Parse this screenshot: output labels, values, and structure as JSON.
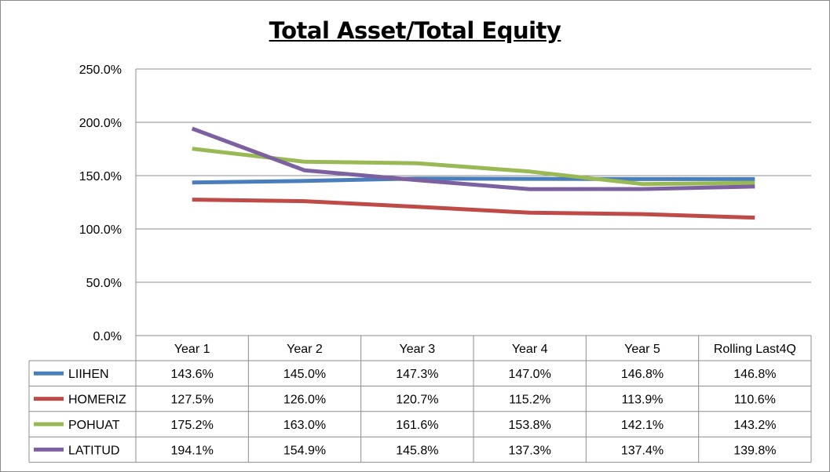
{
  "chart_data": {
    "type": "line",
    "title": "Total Asset/Total Equity",
    "categories": [
      "Year 1",
      "Year 2",
      "Year 3",
      "Year 4",
      "Year 5",
      "Rolling Last4Q"
    ],
    "ylim": [
      0,
      250
    ],
    "yticks": [
      "0.0%",
      "50.0%",
      "100.0%",
      "150.0%",
      "200.0%",
      "250.0%"
    ],
    "grid": true,
    "legend": "data-table",
    "series": [
      {
        "name": "LIIHEN",
        "color": "#4a7ebb",
        "values": [
          143.6,
          145.0,
          147.3,
          147.0,
          146.8,
          146.8
        ],
        "labels": [
          "143.6%",
          "145.0%",
          "147.3%",
          "147.0%",
          "146.8%",
          "146.8%"
        ]
      },
      {
        "name": "HOMERIZ",
        "color": "#be4b48",
        "values": [
          127.5,
          126.0,
          120.7,
          115.2,
          113.9,
          110.6
        ],
        "labels": [
          "127.5%",
          "126.0%",
          "120.7%",
          "115.2%",
          "113.9%",
          "110.6%"
        ]
      },
      {
        "name": "POHUAT",
        "color": "#98b954",
        "values": [
          175.2,
          163.0,
          161.6,
          153.8,
          142.1,
          143.2
        ],
        "labels": [
          "175.2%",
          "163.0%",
          "161.6%",
          "153.8%",
          "142.1%",
          "143.2%"
        ]
      },
      {
        "name": "LATITUD",
        "color": "#7d60a0",
        "values": [
          194.1,
          154.9,
          145.8,
          137.3,
          137.4,
          139.8
        ],
        "labels": [
          "194.1%",
          "154.9%",
          "145.8%",
          "137.3%",
          "137.4%",
          "139.8%"
        ]
      }
    ]
  }
}
